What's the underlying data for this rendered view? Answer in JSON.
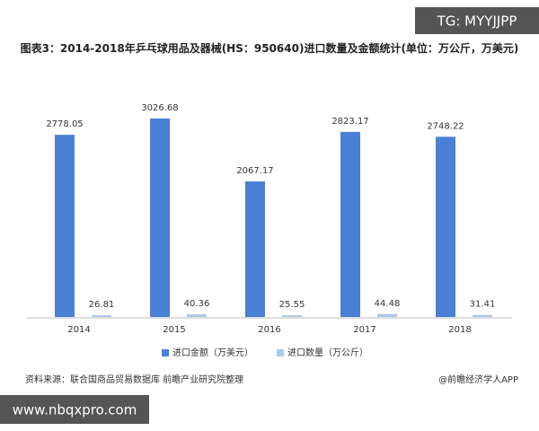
{
  "watermark_top": "TG: MYYJJPP",
  "watermark_bottom": "www.nbqxpro.com",
  "source": "资料来源：联合国商品贸易数据库 前瞻产业研究院整理",
  "credit": "@前瞻经济学人APP",
  "chart_data": {
    "type": "bar",
    "title": "图表3：2014-2018年乒乓球用品及器械(HS：950640)进口数量及金额统计(单位：万公斤，万美元)",
    "categories": [
      "2014",
      "2015",
      "2016",
      "2017",
      "2018"
    ],
    "series": [
      {
        "name": "进口金额（万美元）",
        "color": "#4a7fd6",
        "values": [
          2778.05,
          3026.68,
          2067.17,
          2823.17,
          2748.22
        ]
      },
      {
        "name": "进口数量（万公斤）",
        "color": "#a9c8ec",
        "values": [
          26.81,
          40.36,
          25.55,
          44.48,
          31.41
        ]
      }
    ],
    "legend": "bottom"
  }
}
